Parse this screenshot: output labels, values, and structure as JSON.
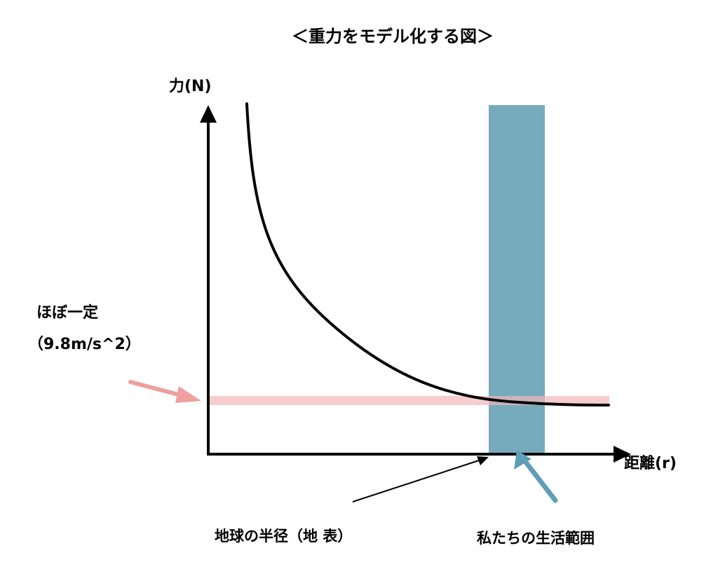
{
  "title": "＜重力をモデル化する図＞",
  "y_axis_label": "力(N)",
  "x_axis_label": "距離(r)",
  "constant_note": {
    "line1": "ほぼ一定",
    "line2": "（9.8m/s^2）"
  },
  "earth_radius_label": "地球の半径（地 表）",
  "living_range_label": "私たちの生活範囲",
  "colors": {
    "curve": "#000000",
    "axes": "#000000",
    "constant_band": "#f2b6b6",
    "constant_arrow": "#ee9f9f",
    "living_band": "#6fa7bb",
    "living_arrow": "#5e9fb7"
  },
  "icons": {
    "y_axis_head": "arrow-up-icon",
    "x_axis_head": "arrow-right-icon",
    "constant_pointer": "arrow-right-icon",
    "earth_pointer": "arrow-up-right-icon",
    "living_pointer": "arrow-up-left-icon"
  }
}
